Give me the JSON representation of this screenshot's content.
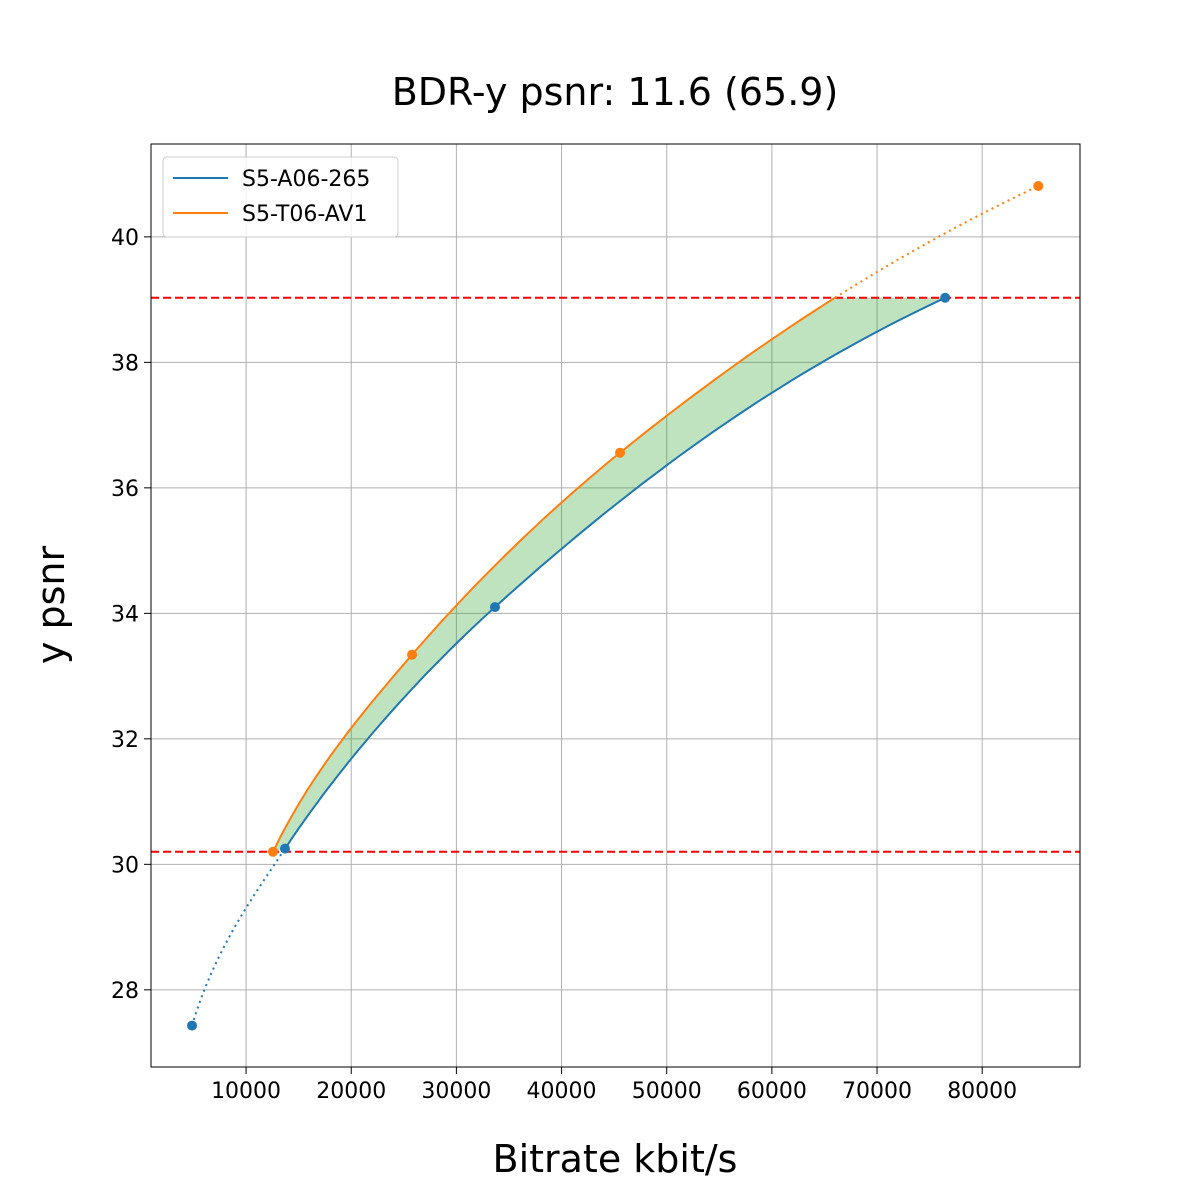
{
  "chart_data": {
    "type": "line",
    "title": "BDR-y psnr: 11.6 (65.9)",
    "xlabel": "Bitrate kbit/s",
    "ylabel": "y psnr",
    "xlim": [
      960,
      89300
    ],
    "ylim": [
      26.77,
      41.48
    ],
    "xticks": [
      10000,
      20000,
      30000,
      40000,
      50000,
      60000,
      70000,
      80000
    ],
    "yticks": [
      28,
      30,
      32,
      34,
      36,
      38,
      40
    ],
    "grid": true,
    "legend_position": "top-left",
    "series": [
      {
        "name": "S5-A06-265",
        "color": "#1f77b4",
        "x": [
          4860,
          13700,
          33670,
          76480
        ],
        "y": [
          27.43,
          30.25,
          34.1,
          39.03
        ]
      },
      {
        "name": "S5-T06-AV1",
        "color": "#ff7f0e",
        "x": [
          12560,
          25780,
          45560,
          85330
        ],
        "y": [
          30.2,
          33.34,
          36.56,
          40.81
        ]
      }
    ],
    "reference_lines": {
      "y": [
        30.2,
        39.03
      ],
      "color": "#ff0000",
      "style": "dashed"
    },
    "fill_between": {
      "y_range": [
        30.2,
        39.03
      ],
      "color": "#2ca02c"
    }
  }
}
